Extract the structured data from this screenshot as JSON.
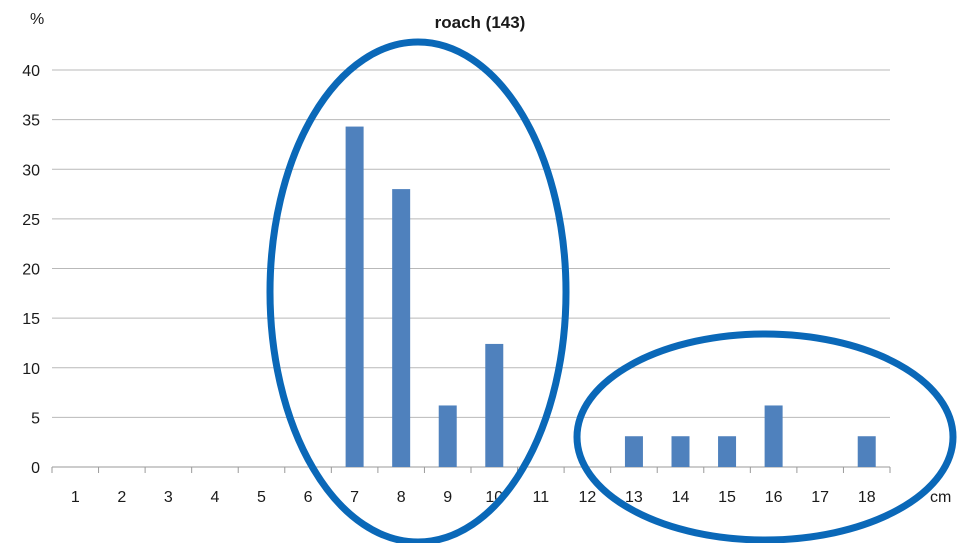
{
  "chart_data": {
    "type": "bar",
    "title": "roach (143)",
    "ylabel": "%",
    "xlabel": "cm",
    "categories": [
      "1",
      "2",
      "3",
      "4",
      "5",
      "6",
      "7",
      "8",
      "9",
      "10",
      "11",
      "12",
      "13",
      "14",
      "15",
      "16",
      "17",
      "18"
    ],
    "series": [
      {
        "values": [
          0,
          0,
          0,
          0,
          0,
          0,
          34.3,
          28.0,
          6.2,
          12.4,
          0,
          0,
          3.1,
          3.1,
          3.1,
          6.2,
          0,
          3.1
        ]
      }
    ],
    "ylim": [
      0,
      40
    ],
    "yticks": [
      0,
      5,
      10,
      15,
      20,
      25,
      30,
      35,
      40
    ],
    "grid": true,
    "bar_color": "#4f81bd",
    "highlights": [
      {
        "categories": [
          "7",
          "8",
          "9",
          "10"
        ],
        "shape": "ellipse",
        "color": "#0a68b8"
      },
      {
        "categories": [
          "13",
          "14",
          "15",
          "16",
          "17",
          "18"
        ],
        "shape": "ellipse",
        "color": "#0a68b8"
      }
    ]
  }
}
